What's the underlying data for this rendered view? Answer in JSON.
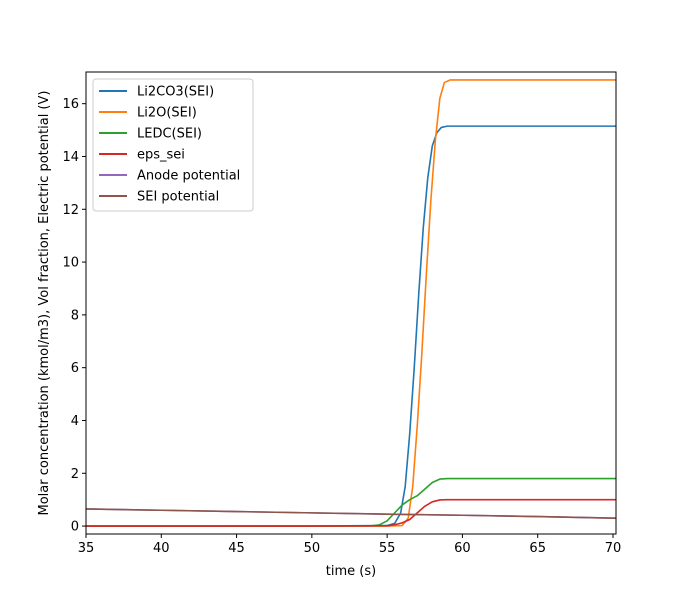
{
  "chart_data": {
    "type": "line",
    "xlabel": "time (s)",
    "ylabel": "Molar concentration (kmol/m3), Vol fraction, Electric potential (V)",
    "xlim": [
      35,
      70.2
    ],
    "ylim": [
      -0.3,
      17.2
    ],
    "xticks": [
      35,
      40,
      45,
      50,
      55,
      60,
      65,
      70
    ],
    "yticks": [
      0,
      2,
      4,
      6,
      8,
      10,
      12,
      14,
      16
    ],
    "grid": false,
    "legend_position": "upper-left",
    "series": [
      {
        "name": "Li2CO3(SEI)",
        "color": "#1f77b4",
        "x": [
          35,
          50,
          55,
          55.5,
          55.9,
          56.2,
          56.5,
          56.8,
          57.1,
          57.4,
          57.7,
          58.0,
          58.3,
          58.6,
          59.0,
          59.5,
          60,
          62,
          65,
          68,
          70.2
        ],
        "y": [
          0,
          0,
          0.02,
          0.1,
          0.5,
          1.5,
          3.5,
          6.0,
          8.8,
          11.3,
          13.2,
          14.4,
          14.9,
          15.1,
          15.15,
          15.15,
          15.15,
          15.15,
          15.15,
          15.15,
          15.15
        ]
      },
      {
        "name": "Li2O(SEI)",
        "color": "#ff7f0e",
        "x": [
          35,
          50,
          55,
          56.0,
          56.4,
          56.7,
          57.0,
          57.3,
          57.6,
          57.9,
          58.2,
          58.5,
          58.8,
          59.2,
          59.6,
          60,
          62,
          65,
          68,
          70.2
        ],
        "y": [
          0,
          0,
          0,
          0.02,
          0.3,
          1.5,
          3.8,
          6.5,
          9.5,
          12.3,
          14.6,
          16.2,
          16.8,
          16.9,
          16.9,
          16.9,
          16.9,
          16.9,
          16.9,
          16.9
        ]
      },
      {
        "name": "LEDC(SEI)",
        "color": "#2ca02c",
        "x": [
          35,
          50,
          54,
          54.5,
          55,
          55.5,
          56,
          56.5,
          57,
          57.5,
          58,
          58.5,
          59,
          60,
          62,
          65,
          68,
          70.2
        ],
        "y": [
          0,
          0,
          0.01,
          0.05,
          0.2,
          0.5,
          0.8,
          1.0,
          1.15,
          1.4,
          1.65,
          1.78,
          1.8,
          1.8,
          1.8,
          1.8,
          1.8,
          1.8
        ]
      },
      {
        "name": "eps_sei",
        "color": "#d62728",
        "x": [
          35,
          50,
          55,
          55.5,
          56,
          56.5,
          57,
          57.5,
          58,
          58.5,
          59,
          60,
          62,
          65,
          68,
          70.2
        ],
        "y": [
          0,
          0,
          0.01,
          0.05,
          0.12,
          0.25,
          0.5,
          0.75,
          0.92,
          0.99,
          1.0,
          1.0,
          1.0,
          1.0,
          1.0,
          1.0
        ]
      },
      {
        "name": "Anode potential",
        "color": "#9467bd",
        "x": [
          35,
          40,
          45,
          50,
          55,
          60,
          65,
          70.2
        ],
        "y": [
          0.65,
          0.6,
          0.55,
          0.5,
          0.45,
          0.41,
          0.36,
          0.3
        ]
      },
      {
        "name": "SEI potential",
        "color": "#8c564b",
        "x": [
          35,
          40,
          45,
          50,
          55,
          60,
          65,
          70.2
        ],
        "y": [
          0.65,
          0.6,
          0.55,
          0.5,
          0.45,
          0.41,
          0.36,
          0.3
        ]
      }
    ]
  }
}
